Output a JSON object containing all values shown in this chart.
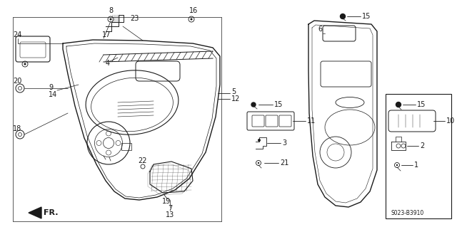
{
  "bg_color": "#ffffff",
  "line_color": "#1a1a1a",
  "diagram_code": "S023-B3910",
  "figsize": [
    6.4,
    3.19
  ],
  "dpi": 100
}
